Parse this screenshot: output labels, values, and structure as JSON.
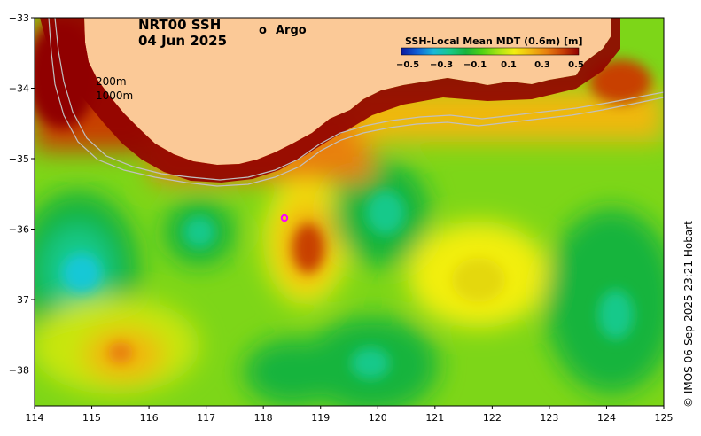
{
  "map": {
    "title": "NRT00 SSH",
    "date": "04 Jun 2025",
    "legend_argo": "Argo",
    "argo_marker_glyph": "o",
    "isobath_labels": [
      "200m",
      "1000m"
    ],
    "credit": "© IMOS 06-Sep-2025 23:21 Hobart",
    "colorbar": {
      "title": "SSH-Local Mean MDT (0.6m) [m]",
      "ticks": [
        "−0.5",
        "−0.3",
        "−0.1",
        "0.1",
        "0.3",
        "0.5"
      ],
      "colors": [
        "#0a1aa0",
        "#1160d6",
        "#19b8d8",
        "#17c98a",
        "#19b43c",
        "#4fd214",
        "#a6e414",
        "#f2ee10",
        "#f0b810",
        "#e88010",
        "#c84006",
        "#900000"
      ]
    },
    "x_ticks": [
      "114",
      "115",
      "116",
      "117",
      "118",
      "119",
      "120",
      "121",
      "122",
      "123",
      "124",
      "125"
    ],
    "y_ticks": [
      "−33",
      "−34",
      "−35",
      "−36",
      "−37",
      "−38"
    ],
    "colors": {
      "land": "#fbc997",
      "sea_base": "#7dd618",
      "argo": "#ff00ff",
      "isobath": "#c0c0c0"
    }
  }
}
